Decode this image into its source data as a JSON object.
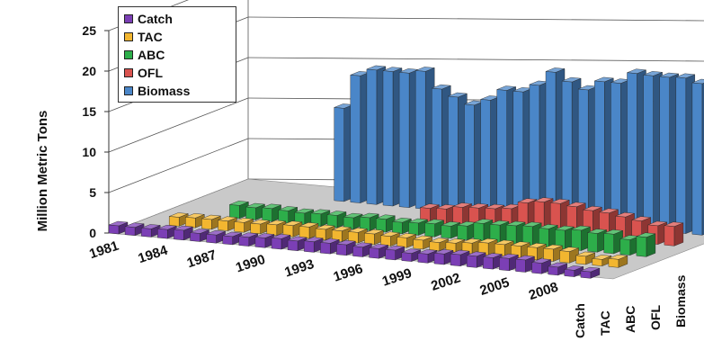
{
  "chart_data": {
    "type": "bar",
    "variant": "3d-depth-bars",
    "ylabel": "Million Metric Tons",
    "ylim": [
      0,
      25
    ],
    "yticks": [
      "25",
      "20",
      "15",
      "10",
      "5",
      "0"
    ],
    "xtick_labels": [
      "1981",
      "1984",
      "1987",
      "1990",
      "1993",
      "1996",
      "1999",
      "2002",
      "2005",
      "2008"
    ],
    "x": [
      1981,
      1982,
      1983,
      1984,
      1985,
      1986,
      1987,
      1988,
      1989,
      1990,
      1991,
      1992,
      1993,
      1994,
      1995,
      1996,
      1997,
      1998,
      1999,
      2000,
      2001,
      2002,
      2003,
      2004,
      2005,
      2006,
      2007,
      2008,
      2009,
      2010
    ],
    "depth_labels": [
      "Catch",
      "TAC",
      "ABC",
      "OFL",
      "Biomass"
    ],
    "legend_position": "top-left",
    "grid": true,
    "series": [
      {
        "name": "Catch",
        "color": "#7B3FB5",
        "values": [
          1.0,
          1.0,
          1.0,
          1.1,
          1.2,
          1.0,
          1.0,
          1.0,
          1.1,
          1.2,
          1.3,
          1.2,
          1.3,
          1.3,
          1.3,
          1.2,
          1.2,
          1.2,
          1.0,
          1.1,
          1.3,
          1.4,
          1.4,
          1.4,
          1.5,
          1.5,
          1.3,
          1.0,
          0.8,
          0.8
        ]
      },
      {
        "name": "TAC",
        "color": "#F2B630",
        "values": [
          null,
          null,
          1.1,
          1.2,
          1.2,
          1.2,
          1.2,
          1.2,
          1.3,
          1.4,
          1.4,
          1.3,
          1.3,
          1.3,
          1.3,
          1.2,
          1.2,
          1.1,
          1.0,
          1.1,
          1.3,
          1.5,
          1.5,
          1.5,
          1.5,
          1.5,
          1.4,
          1.0,
          0.8,
          1.0
        ]
      },
      {
        "name": "ABC",
        "color": "#2DAE4A",
        "values": [
          null,
          null,
          null,
          null,
          1.6,
          1.5,
          1.6,
          1.5,
          1.4,
          1.5,
          1.5,
          1.4,
          1.6,
          1.6,
          1.4,
          1.5,
          1.6,
          1.5,
          1.7,
          2.2,
          2.2,
          2.3,
          2.4,
          2.3,
          2.3,
          2.5,
          2.3,
          2.4,
          1.9,
          2.4
        ]
      },
      {
        "name": "OFL",
        "color": "#D9534F",
        "values": [
          null,
          null,
          null,
          null,
          null,
          null,
          null,
          null,
          null,
          null,
          null,
          null,
          null,
          null,
          1.8,
          1.9,
          2.3,
          2.4,
          2.5,
          2.7,
          3.6,
          3.9,
          3.9,
          3.7,
          3.4,
          3.3,
          3.0,
          2.7,
          2.3,
          2.4
        ]
      },
      {
        "name": "Biomass",
        "color": "#4A86C8",
        "values": [
          null,
          null,
          null,
          null,
          null,
          null,
          null,
          11.5,
          15.7,
          16.6,
          16.6,
          16.6,
          17.0,
          15.0,
          14.2,
          13.4,
          14.2,
          15.6,
          15.6,
          16.6,
          18.4,
          17.4,
          16.6,
          17.8,
          17.8,
          19.2,
          19.1,
          19.1,
          19.2,
          18.7
        ]
      }
    ]
  }
}
